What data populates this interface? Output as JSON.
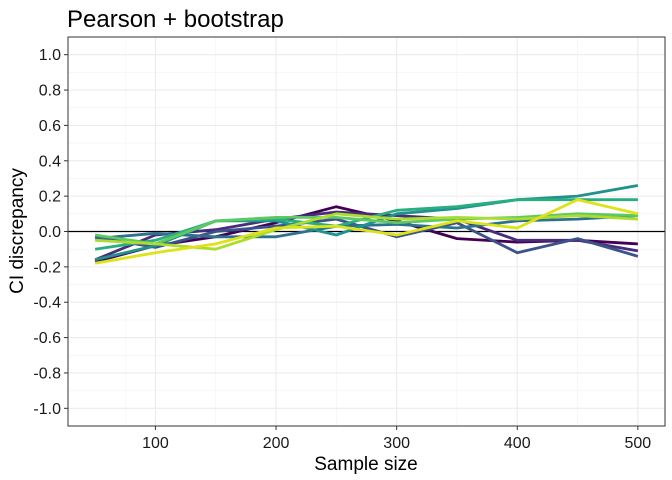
{
  "chart_data": {
    "type": "line",
    "title": "Pearson + bootstrap",
    "xlabel": "Sample size",
    "ylabel": "CI discrepancy",
    "xlim": [
      27.5,
      522.5
    ],
    "ylim": [
      -1.1,
      1.1
    ],
    "x_ticks": [
      100,
      200,
      300,
      400,
      500
    ],
    "x_tick_labels": [
      "100",
      "200",
      "300",
      "400",
      "500"
    ],
    "y_ticks": [
      -1.0,
      -0.8,
      -0.6,
      -0.4,
      -0.2,
      0.0,
      0.2,
      0.4,
      0.6,
      0.8,
      1.0
    ],
    "y_tick_labels": [
      "-1.0",
      "-0.8",
      "-0.6",
      "-0.4",
      "-0.2",
      "0.0",
      "0.2",
      "0.4",
      "0.6",
      "0.8",
      "1.0"
    ],
    "reference_line": 0,
    "grid": true,
    "x": [
      50,
      100,
      150,
      200,
      250,
      300,
      350,
      400,
      450,
      500
    ],
    "series": [
      {
        "color": "#440154",
        "values": [
          -0.17,
          -0.08,
          -0.03,
          0.05,
          0.14,
          0.06,
          -0.04,
          -0.06,
          -0.05,
          -0.07
        ]
      },
      {
        "color": "#472d7b",
        "values": [
          -0.16,
          -0.02,
          0.01,
          0.07,
          0.11,
          0.09,
          0.07,
          -0.05,
          -0.05,
          -0.11
        ]
      },
      {
        "color": "#3b528b",
        "values": [
          -0.03,
          -0.09,
          0.0,
          0.03,
          0.07,
          -0.03,
          0.05,
          -0.12,
          -0.04,
          -0.14
        ]
      },
      {
        "color": "#2c728e",
        "values": [
          -0.04,
          -0.01,
          -0.03,
          -0.03,
          0.03,
          0.04,
          0.02,
          0.06,
          0.07,
          0.09
        ]
      },
      {
        "color": "#21918c",
        "values": [
          -0.16,
          -0.08,
          0.06,
          0.06,
          -0.02,
          0.1,
          0.13,
          0.18,
          0.2,
          0.26
        ]
      },
      {
        "color": "#28ae80",
        "values": [
          -0.1,
          -0.05,
          0.06,
          0.07,
          0.03,
          0.12,
          0.14,
          0.18,
          0.18,
          0.18
        ]
      },
      {
        "color": "#5ec962",
        "values": [
          -0.02,
          -0.07,
          0.06,
          0.08,
          0.08,
          0.05,
          0.07,
          0.08,
          0.1,
          0.09
        ]
      },
      {
        "color": "#addc30",
        "values": [
          -0.05,
          -0.07,
          -0.1,
          0.01,
          0.1,
          0.07,
          0.08,
          0.07,
          0.09,
          0.07
        ]
      },
      {
        "color": "#dde318",
        "values": [
          -0.18,
          -0.12,
          -0.07,
          0.02,
          0.03,
          -0.02,
          0.06,
          0.02,
          0.18,
          0.1
        ]
      }
    ]
  }
}
